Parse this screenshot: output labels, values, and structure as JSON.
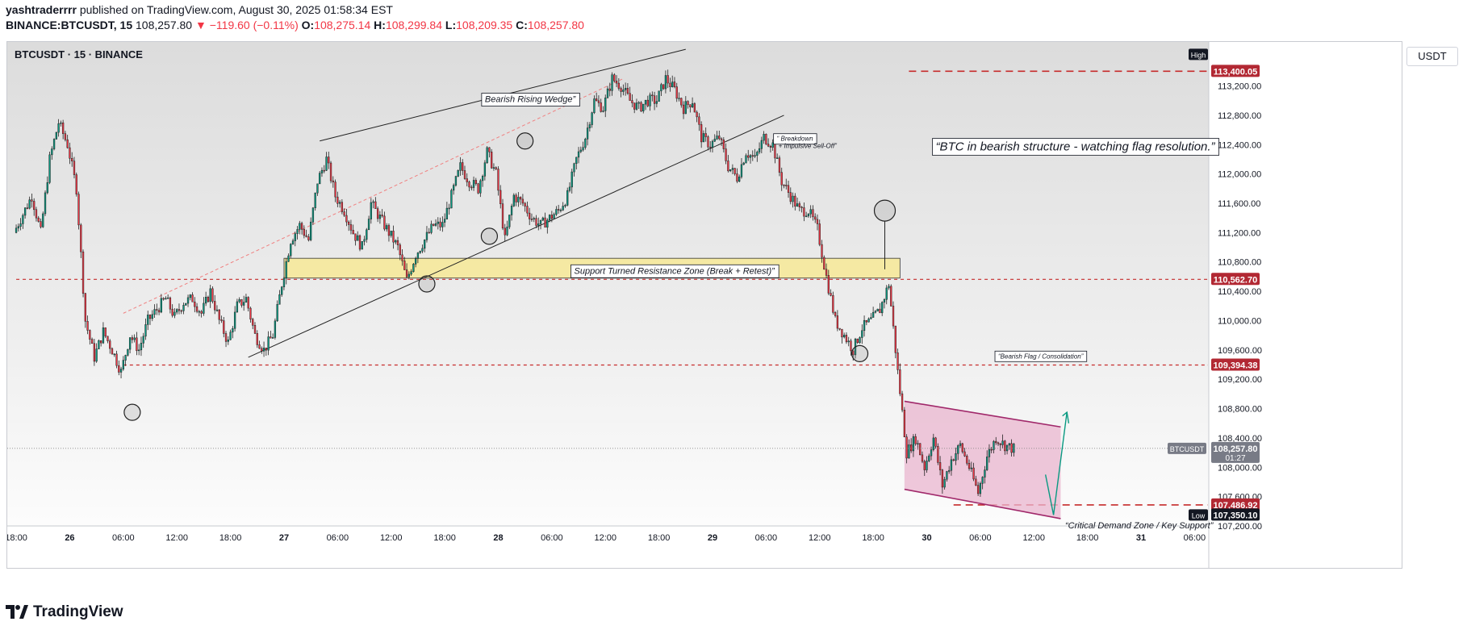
{
  "header": {
    "author": "yashtraderrrr",
    "published": "published on TradingView.com, August 30, 2025 01:58:34 EST",
    "symbol": "BINANCE:BTCUSDT, 15",
    "last": "108,257.80",
    "change": "▼ −119.60 (−0.11%)",
    "o_label": "O:",
    "o": "108,275.14",
    "h_label": "H:",
    "h": "108,299.84",
    "l_label": "L:",
    "l": "108,209.35",
    "c_label": "C:",
    "c": "108,257.80"
  },
  "pane_symbol": "BTCUSDT · 15 · BINANCE",
  "currency": "USDT",
  "branding": "TradingView",
  "colors": {
    "up": "#089981",
    "down": "#f23645",
    "level": "#c62b2b",
    "zone": "#f5e9a3",
    "flag": "#e9b5cf",
    "flag_line": "#a0286a"
  },
  "chart_data": {
    "type": "candlestick",
    "symbol": "BTCUSDT",
    "interval": "15",
    "ylim": [
      107200,
      113800
    ],
    "y_ticks": [
      107200,
      107600,
      108000,
      108400,
      108800,
      109200,
      109600,
      110000,
      110400,
      110800,
      111200,
      111600,
      112000,
      112400,
      112800,
      113200
    ],
    "y_tick_labels": [
      "107,200.00",
      "107,600.00",
      "108,000.00",
      "108,400.00",
      "108,800.00",
      "109,200.00",
      "109,600.00",
      "110,000.00",
      "110,400.00",
      "110,800.00",
      "111,200.00",
      "111,600.00",
      "112,000.00",
      "112,400.00",
      "112,800.00",
      "113,200.00"
    ],
    "x_ticks": [
      {
        "t": 0,
        "label": "18:00"
      },
      {
        "t": 6,
        "label": "26"
      },
      {
        "t": 12,
        "label": "06:00"
      },
      {
        "t": 18,
        "label": "12:00"
      },
      {
        "t": 24,
        "label": "18:00"
      },
      {
        "t": 30,
        "label": "27"
      },
      {
        "t": 36,
        "label": "06:00"
      },
      {
        "t": 42,
        "label": "12:00"
      },
      {
        "t": 48,
        "label": "18:00"
      },
      {
        "t": 54,
        "label": "28"
      },
      {
        "t": 60,
        "label": "06:00"
      },
      {
        "t": 66,
        "label": "12:00"
      },
      {
        "t": 72,
        "label": "18:00"
      },
      {
        "t": 78,
        "label": "29"
      },
      {
        "t": 84,
        "label": "06:00"
      },
      {
        "t": 90,
        "label": "12:00"
      },
      {
        "t": 96,
        "label": "18:00"
      },
      {
        "t": 102,
        "label": "30"
      },
      {
        "t": 108,
        "label": "06:00"
      },
      {
        "t": 114,
        "label": "12:00"
      },
      {
        "t": 120,
        "label": "18:00"
      },
      {
        "t": 126,
        "label": "31"
      },
      {
        "t": 132,
        "label": "06:00"
      }
    ],
    "xlim": [
      -1,
      133.5
    ],
    "path": [
      [
        0,
        111200
      ],
      [
        2,
        111700
      ],
      [
        3,
        111200
      ],
      [
        4,
        112200
      ],
      [
        5,
        112700
      ],
      [
        6,
        112400
      ],
      [
        7,
        111800
      ],
      [
        8,
        110000
      ],
      [
        9,
        109500
      ],
      [
        10,
        109850
      ],
      [
        11,
        109600
      ],
      [
        12,
        109300
      ],
      [
        13,
        109800
      ],
      [
        14,
        109600
      ],
      [
        15,
        110000
      ],
      [
        16,
        110150
      ],
      [
        17,
        110300
      ],
      [
        18,
        110050
      ],
      [
        19,
        110250
      ],
      [
        20,
        110300
      ],
      [
        21,
        110100
      ],
      [
        22,
        110400
      ],
      [
        23,
        110000
      ],
      [
        24,
        109700
      ],
      [
        25,
        110200
      ],
      [
        26,
        110300
      ],
      [
        27,
        109800
      ],
      [
        28,
        109600
      ],
      [
        29,
        109800
      ],
      [
        30,
        110500
      ],
      [
        31,
        111100
      ],
      [
        32,
        111300
      ],
      [
        33,
        111100
      ],
      [
        34,
        111900
      ],
      [
        35,
        112200
      ],
      [
        36,
        111700
      ],
      [
        37,
        111500
      ],
      [
        38,
        111200
      ],
      [
        39,
        111000
      ],
      [
        40,
        111600
      ],
      [
        41,
        111400
      ],
      [
        42,
        111200
      ],
      [
        43,
        111000
      ],
      [
        44,
        110550
      ],
      [
        45,
        110900
      ],
      [
        46,
        111100
      ],
      [
        47,
        111300
      ],
      [
        48,
        111300
      ],
      [
        49,
        111700
      ],
      [
        50,
        112100
      ],
      [
        51,
        111900
      ],
      [
        52,
        111800
      ],
      [
        53,
        112300
      ],
      [
        54,
        112000
      ],
      [
        55,
        111100
      ],
      [
        56,
        111700
      ],
      [
        57,
        111600
      ],
      [
        58,
        111400
      ],
      [
        59,
        111300
      ],
      [
        60,
        111400
      ],
      [
        61,
        111500
      ],
      [
        62,
        111700
      ],
      [
        63,
        112200
      ],
      [
        64,
        112500
      ],
      [
        65,
        113000
      ],
      [
        66,
        112900
      ],
      [
        67,
        113300
      ],
      [
        68,
        113200
      ],
      [
        69,
        113000
      ],
      [
        70,
        112900
      ],
      [
        71,
        113000
      ],
      [
        72,
        113000
      ],
      [
        73,
        113300
      ],
      [
        74,
        113150
      ],
      [
        75,
        112900
      ],
      [
        76,
        113000
      ],
      [
        77,
        112500
      ],
      [
        78,
        112400
      ],
      [
        79,
        112500
      ],
      [
        80,
        112100
      ],
      [
        81,
        111950
      ],
      [
        82,
        112300
      ],
      [
        83,
        112200
      ],
      [
        84,
        112500
      ],
      [
        85,
        112400
      ],
      [
        86,
        111900
      ],
      [
        87,
        111700
      ],
      [
        88,
        111500
      ],
      [
        89,
        111500
      ],
      [
        90,
        111250
      ],
      [
        91,
        110600
      ],
      [
        92,
        110000
      ],
      [
        93,
        109800
      ],
      [
        94,
        109600
      ],
      [
        95,
        109900
      ],
      [
        96,
        110000
      ],
      [
        97,
        110150
      ],
      [
        98,
        110500
      ],
      [
        99,
        109300
      ],
      [
        100,
        108200
      ],
      [
        101,
        108400
      ],
      [
        102,
        108000
      ],
      [
        103,
        108400
      ],
      [
        104,
        107750
      ],
      [
        105,
        108100
      ],
      [
        106,
        108300
      ],
      [
        107,
        108000
      ],
      [
        108,
        107650
      ],
      [
        109,
        108150
      ],
      [
        110,
        108400
      ],
      [
        111,
        108300
      ],
      [
        112,
        108250
      ]
    ],
    "levels": [
      {
        "value": 113400.05,
        "label": "113,400.05",
        "style": "dashed"
      },
      {
        "value": 110562.7,
        "label": "110,562.70",
        "style": "dashed"
      },
      {
        "value": 109394.38,
        "label": "109,394.38",
        "style": "dashed"
      },
      {
        "value": 107486.92,
        "label": "107,486.92",
        "style": "dashed"
      }
    ],
    "price_tags": [
      {
        "value": 108257.8,
        "label": "108,257.80",
        "sub": "01:27",
        "name": "BTCUSDT"
      },
      {
        "value": 107350.1,
        "label": "107,350.10",
        "name": "Low"
      }
    ],
    "high_label": "High",
    "zone": {
      "from": 110580,
      "to": 110850,
      "t0": 30,
      "t1": 99,
      "label": "Support Turned Resistance Zone (Break + Retest)”"
    },
    "wedge": {
      "upper": [
        [
          34,
          112450
        ],
        [
          75,
          113700
        ]
      ],
      "lower": [
        [
          26,
          109500
        ],
        [
          86,
          112800
        ]
      ],
      "label": "Bearish Rising Wedge”"
    },
    "breakdown_label": "“      Breakdown\n+ Impulsive Sell-Off”",
    "flag": {
      "top": [
        [
          99.5,
          108900
        ],
        [
          117,
          108550
        ]
      ],
      "bottom": [
        [
          99.5,
          107700
        ],
        [
          117,
          107300
        ]
      ],
      "label": "“Bearish Flag / Consolidation”"
    },
    "circles": [
      [
        13,
        108750
      ],
      [
        46,
        110500
      ],
      [
        53,
        111150
      ],
      [
        57,
        112450
      ],
      [
        94.5,
        109550
      ],
      [
        97.3,
        111500
      ]
    ],
    "comment": "“BTC in bearish structure - watching flag resolution.”",
    "demand_label": "“Critical Demand Zone / Key Support”"
  }
}
